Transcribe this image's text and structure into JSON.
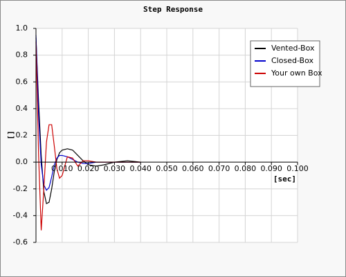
{
  "chart_data": {
    "type": "line",
    "title": "Step Response",
    "x_label": "[sec]",
    "y_label": "[]",
    "x": [
      0,
      0.001,
      0.002,
      0.003,
      0.004,
      0.005,
      0.006,
      0.007,
      0.008,
      0.009,
      0.01,
      0.012,
      0.014,
      0.016,
      0.018,
      0.02,
      0.023,
      0.026,
      0.03,
      0.035,
      0.04
    ],
    "series": [
      {
        "name": "Vented-Box",
        "color": "#000000",
        "values": [
          0.93,
          0.45,
          0.05,
          -0.22,
          -0.31,
          -0.3,
          -0.2,
          -0.07,
          0.02,
          0.07,
          0.09,
          0.1,
          0.09,
          0.05,
          0.01,
          -0.02,
          -0.03,
          -0.02,
          0,
          0.01,
          0
        ]
      },
      {
        "name": "Closed-Box",
        "color": "#0000cc",
        "values": [
          0.95,
          0.35,
          -0.02,
          -0.17,
          -0.21,
          -0.19,
          -0.11,
          -0.02,
          0.03,
          0.05,
          0.05,
          0.04,
          0.02,
          0,
          -0.01,
          -0.01,
          0,
          0,
          0,
          0,
          0
        ]
      },
      {
        "name": "Your own Box",
        "color": "#cc0000",
        "values": [
          0.9,
          0.05,
          -0.51,
          -0.2,
          0.15,
          0.28,
          0.28,
          0.12,
          -0.05,
          -0.12,
          -0.1,
          0.04,
          0.03,
          -0.03,
          0.01,
          0.01,
          0,
          0,
          0,
          0,
          0
        ]
      }
    ],
    "xlim": [
      0,
      0.1
    ],
    "ylim": [
      -0.6,
      1
    ],
    "xticks": [
      {
        "value": 0.01,
        "label": "0.010"
      },
      {
        "value": 0.02,
        "label": "0.020"
      },
      {
        "value": 0.03,
        "label": "0.030"
      },
      {
        "value": 0.04,
        "label": "0.040"
      },
      {
        "value": 0.05,
        "label": "0.050"
      },
      {
        "value": 0.06,
        "label": "0.060"
      },
      {
        "value": 0.07,
        "label": "0.070"
      },
      {
        "value": 0.08,
        "label": "0.080"
      },
      {
        "value": 0.09,
        "label": "0.090"
      },
      {
        "value": 0.1,
        "label": "0.100"
      }
    ],
    "yticks": [
      {
        "value": 1,
        "label": "1.0"
      },
      0.8,
      0.6,
      0.4,
      0.2,
      {
        "value": 0,
        "label": "0.0"
      },
      -0.2,
      -0.4,
      -0.6
    ],
    "grid": true,
    "legend": "top-right"
  }
}
